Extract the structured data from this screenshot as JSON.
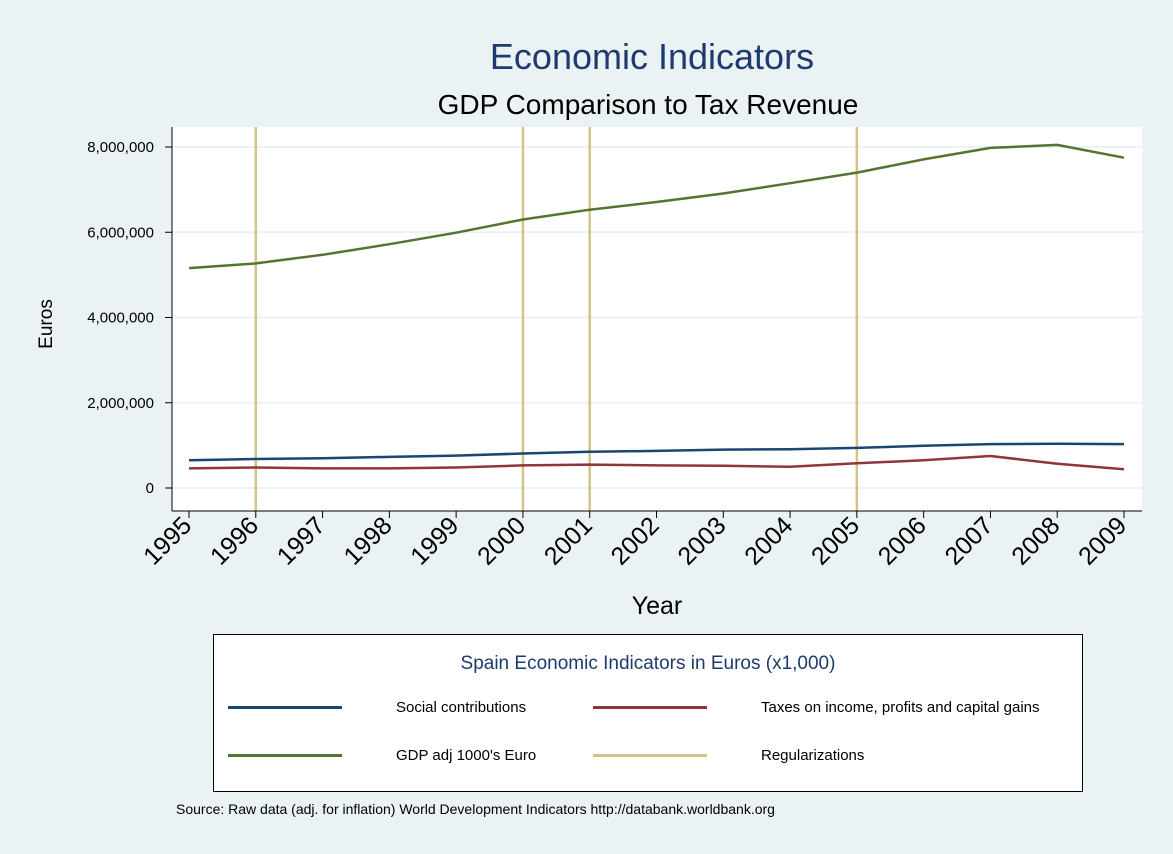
{
  "chart_data": {
    "type": "line",
    "title": "Economic Indicators",
    "subtitle": "GDP Comparison to Tax Revenue",
    "xlabel": "Year",
    "ylabel": "Euros",
    "x": [
      "1995",
      "1996",
      "1997",
      "1998",
      "1999",
      "2000",
      "2001",
      "2002",
      "2003",
      "2004",
      "2005",
      "2006",
      "2007",
      "2008",
      "2009"
    ],
    "ylim": [
      0,
      8000000
    ],
    "yticks": [
      0,
      2000000,
      4000000,
      6000000,
      8000000
    ],
    "ytick_labels": [
      "0",
      "2,000,000",
      "4,000,000",
      "6,000,000",
      "8,000,000"
    ],
    "grid": true,
    "series": [
      {
        "name": "Social contributions",
        "color": "#1a476f",
        "values": [
          650000,
          680000,
          700000,
          730000,
          760000,
          810000,
          850000,
          870000,
          900000,
          910000,
          940000,
          990000,
          1030000,
          1040000,
          1030000
        ]
      },
      {
        "name": "Taxes on income, profits and capital gains",
        "color": "#90353b",
        "values": [
          460000,
          480000,
          460000,
          460000,
          480000,
          530000,
          550000,
          530000,
          520000,
          500000,
          580000,
          650000,
          750000,
          570000,
          440000
        ]
      },
      {
        "name": "GDP adj 1000's Euro",
        "color": "#55752f",
        "values": [
          5160000,
          5270000,
          5470000,
          5720000,
          5990000,
          6300000,
          6530000,
          6710000,
          6910000,
          7150000,
          7400000,
          7710000,
          7980000,
          8050000,
          7750000
        ]
      }
    ],
    "vlines": {
      "name": "Regularizations",
      "color": "#d1c486",
      "x": [
        "1996",
        "2000",
        "2001",
        "2005"
      ]
    },
    "legend": {
      "title": "Spain Economic Indicators in Euros (x1,000)",
      "position": "bottom"
    }
  },
  "source_note": "Source: Raw data (adj. for inflation) World Development Indicators  http://databank.worldbank.org"
}
